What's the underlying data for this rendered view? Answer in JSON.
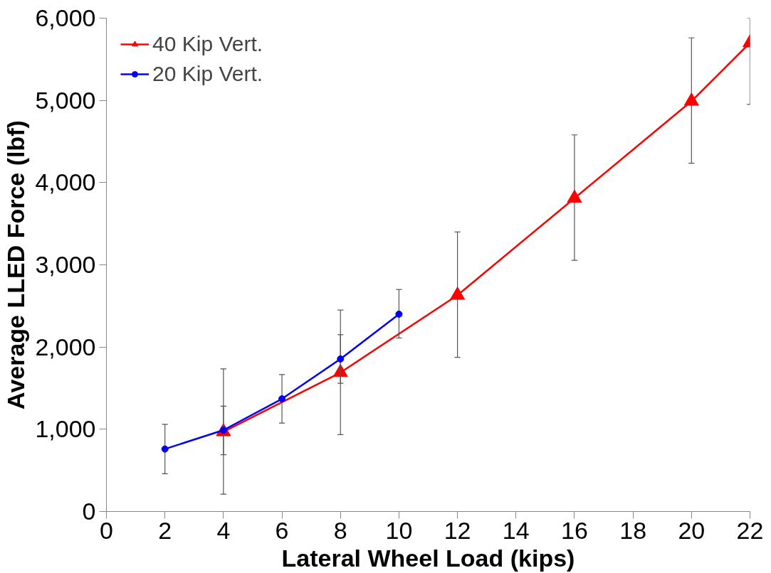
{
  "chart_data": {
    "type": "line",
    "xlabel": "Lateral Wheel Load (kips)",
    "ylabel": "Average LLED Force (lbf)",
    "xlim": [
      0,
      22
    ],
    "xticks": [
      0,
      2,
      4,
      6,
      8,
      10,
      12,
      14,
      16,
      18,
      20,
      22
    ],
    "ylim": [
      0,
      6000
    ],
    "yticks": [
      {
        "value": 0,
        "label": "0"
      },
      {
        "value": 1000,
        "label": "1,000"
      },
      {
        "value": 2000,
        "label": "2,000"
      },
      {
        "value": 3000,
        "label": "3,000"
      },
      {
        "value": 4000,
        "label": "4,000"
      },
      {
        "value": 5000,
        "label": "5,000"
      },
      {
        "value": 6000,
        "label": "6,000"
      }
    ],
    "grid": false,
    "legend": "top left",
    "series": [
      {
        "name": "40 Kip Vert.",
        "color": "#ff0000",
        "marker": "triangle",
        "x": [
          4,
          8,
          12,
          16,
          20,
          22
        ],
        "values": [
          970,
          1690,
          2630,
          3810,
          4990,
          5700
        ],
        "errors": [
          [
            210,
            1735
          ],
          [
            935,
            2450
          ],
          [
            1875,
            3400
          ],
          [
            3055,
            4580
          ],
          [
            4235,
            5760
          ],
          [
            4950,
            6000
          ]
        ]
      },
      {
        "name": "20 Kip Vert.",
        "color": "#0000ff",
        "marker": "circle",
        "x": [
          2,
          4,
          6,
          8,
          10
        ],
        "values": [
          760,
          990,
          1370,
          1855,
          2400
        ],
        "errors": [
          [
            460,
            1060
          ],
          [
            690,
            1280
          ],
          [
            1075,
            1665
          ],
          [
            1560,
            2150
          ],
          [
            2110,
            2700
          ]
        ]
      }
    ]
  }
}
